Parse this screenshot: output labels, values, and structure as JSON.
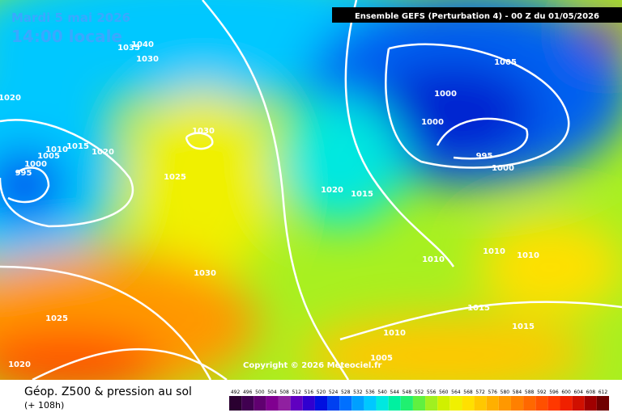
{
  "header": {
    "date": "Mardi 5 mai 2026",
    "time": "14:00 locale",
    "model": "Ensemble GEFS  (Perturbation 4)  -  00 Z du 01/05/2026"
  },
  "isobar_labels": [
    1040,
    1035,
    1030,
    1020,
    1010,
    1015,
    1020,
    1005,
    1000,
    995,
    1030,
    1025,
    1020,
    1015,
    1005,
    1000,
    1000,
    995,
    1000,
    1010,
    1010,
    1010,
    1030,
    1025,
    1015,
    1015,
    1010,
    1005,
    1020
  ],
  "copyright": "Copyright © 2026 Meteociel.fr",
  "footer": {
    "title": "Géop. Z500 & pression au sol",
    "lead": "(+ 108h)"
  },
  "scale": {
    "values": [
      492,
      496,
      500,
      504,
      508,
      512,
      516,
      520,
      524,
      528,
      532,
      536,
      540,
      544,
      548,
      552,
      556,
      560,
      564,
      568,
      572,
      576,
      580,
      584,
      588,
      592,
      596,
      600,
      604,
      608,
      612
    ],
    "colors": [
      "#2a0030",
      "#400050",
      "#600070",
      "#800090",
      "#9020a0",
      "#6000c0",
      "#3000d0",
      "#0010e0",
      "#0040f0",
      "#0070ff",
      "#00a0ff",
      "#00c8ff",
      "#00e8e0",
      "#00f0a0",
      "#20f070",
      "#60f040",
      "#a0f020",
      "#d0f000",
      "#f0f000",
      "#ffe000",
      "#ffc800",
      "#ffb000",
      "#ff9800",
      "#ff8000",
      "#ff6800",
      "#ff5000",
      "#ff3800",
      "#f02000",
      "#d01000",
      "#a00000",
      "#700000"
    ]
  }
}
